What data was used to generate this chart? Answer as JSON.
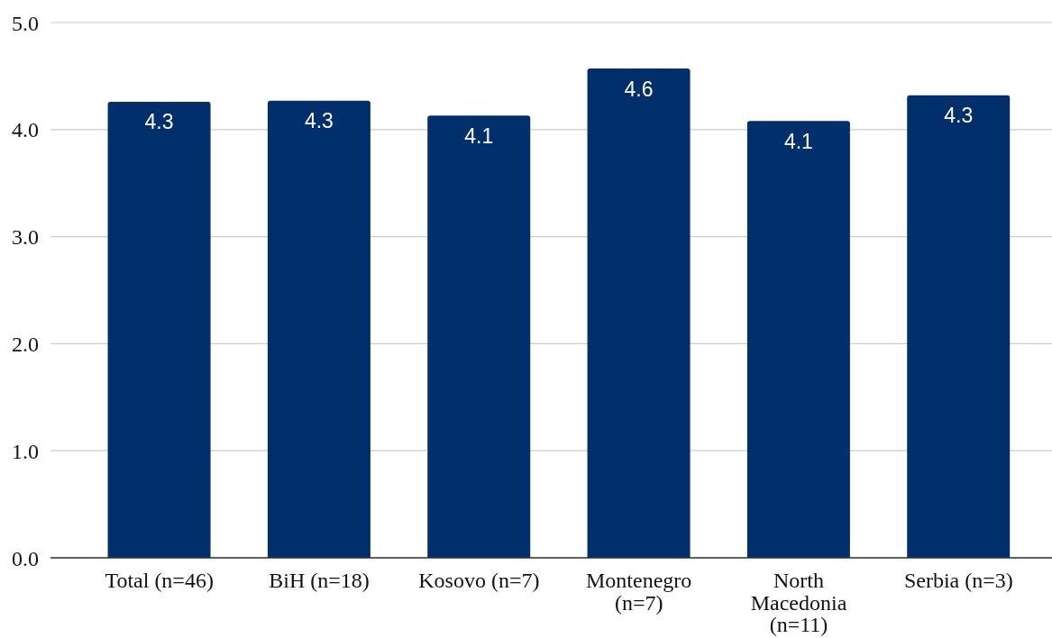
{
  "chart_data": {
    "type": "bar",
    "categories": [
      "Total (n=46)",
      "BiH (n=18)",
      "Kosovo (n=7)",
      "Montenegro (n=7)",
      "North Macedonia (n=11)",
      "Serbia (n=3)"
    ],
    "values": [
      4.26,
      4.27,
      4.13,
      4.57,
      4.08,
      4.32
    ],
    "value_labels": [
      "4.3",
      "4.3",
      "4.1",
      "4.6",
      "4.1",
      "4.3"
    ],
    "color": "#002f6c",
    "ylim": [
      0,
      5
    ],
    "yticks": [
      {
        "value": 0,
        "label": "0.0"
      },
      {
        "value": 1,
        "label": "1.0"
      },
      {
        "value": 2,
        "label": "2.0"
      },
      {
        "value": 3,
        "label": "3.0"
      },
      {
        "value": 4,
        "label": "4.0"
      },
      {
        "value": 5,
        "label": "5.0"
      }
    ],
    "grid": "y"
  }
}
